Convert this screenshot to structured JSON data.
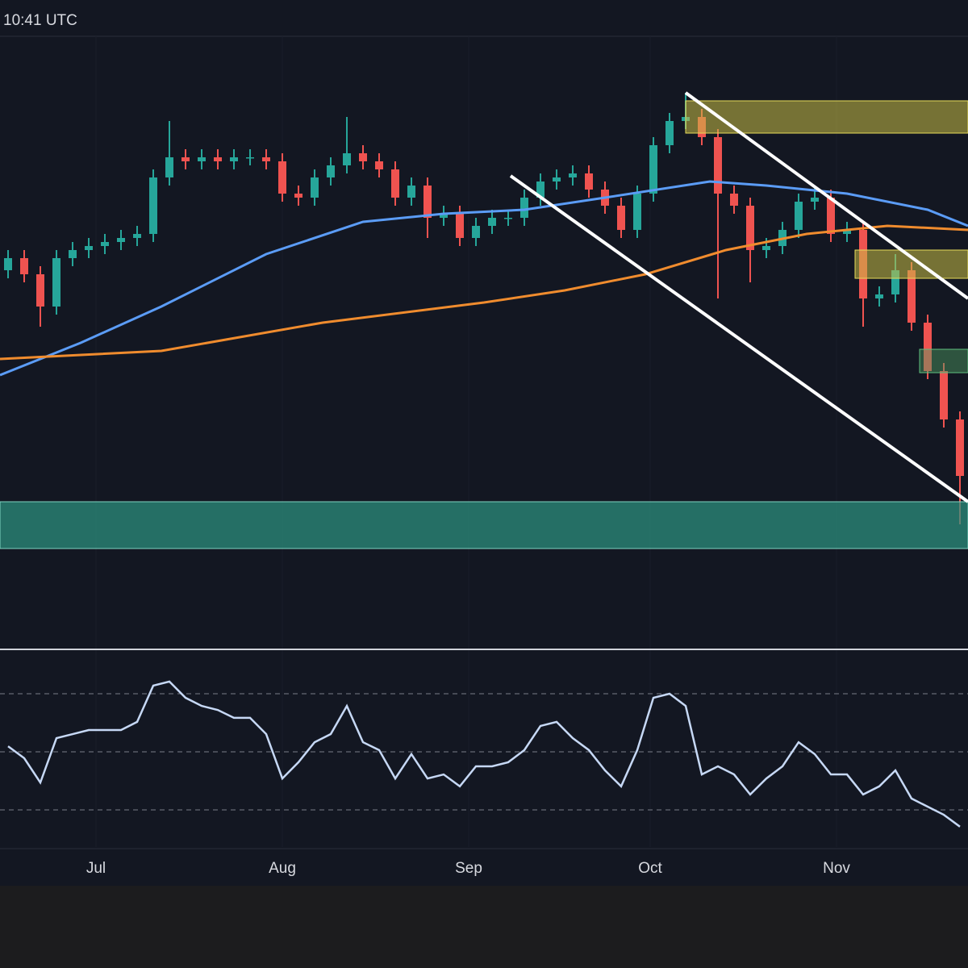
{
  "header": {
    "time": "10:41 UTC"
  },
  "chart_data": {
    "type": "candlestick",
    "xlim": [
      -0.5,
      59.5
    ],
    "xticks": [
      {
        "value": 5.45,
        "label": "Jul"
      },
      {
        "value": 17,
        "label": "Aug"
      },
      {
        "value": 28.55,
        "label": "Sep"
      },
      {
        "value": 39.8,
        "label": "Oct"
      },
      {
        "value": 51.35,
        "label": "Nov"
      }
    ],
    "ylim": [
      0,
      760
    ],
    "up_color": "#26a69a",
    "down_color": "#ef5350",
    "open": [
      470,
      485,
      465,
      425,
      485,
      495,
      500,
      505,
      510,
      515,
      585,
      610,
      605,
      610,
      605,
      610,
      610,
      605,
      565,
      560,
      585,
      600,
      615,
      605,
      595,
      560,
      575,
      535,
      540,
      510,
      525,
      535,
      535,
      560,
      580,
      585,
      590,
      570,
      550,
      520,
      565,
      625,
      655,
      660,
      635,
      565,
      550,
      495,
      500,
      520,
      555,
      560,
      515,
      520,
      435,
      440,
      470,
      405,
      345,
      285
    ],
    "high": [
      495,
      495,
      475,
      495,
      505,
      510,
      515,
      520,
      525,
      595,
      655,
      620,
      620,
      620,
      620,
      620,
      620,
      615,
      575,
      595,
      610,
      660,
      625,
      615,
      605,
      585,
      585,
      550,
      550,
      535,
      545,
      545,
      570,
      590,
      595,
      600,
      600,
      580,
      560,
      575,
      635,
      665,
      690,
      670,
      645,
      575,
      560,
      510,
      530,
      565,
      575,
      570,
      530,
      530,
      450,
      490,
      480,
      415,
      355,
      295
    ],
    "low": [
      460,
      455,
      400,
      415,
      475,
      485,
      490,
      495,
      500,
      505,
      575,
      595,
      595,
      595,
      595,
      600,
      595,
      555,
      550,
      550,
      575,
      590,
      595,
      585,
      550,
      550,
      510,
      525,
      500,
      500,
      515,
      525,
      525,
      550,
      570,
      575,
      560,
      540,
      510,
      510,
      555,
      615,
      645,
      625,
      435,
      540,
      455,
      485,
      490,
      510,
      545,
      505,
      505,
      400,
      425,
      430,
      395,
      335,
      275,
      155
    ],
    "close": [
      485,
      465,
      425,
      485,
      495,
      500,
      505,
      510,
      515,
      585,
      610,
      605,
      610,
      605,
      610,
      610,
      605,
      565,
      560,
      585,
      600,
      615,
      605,
      595,
      560,
      575,
      535,
      540,
      510,
      525,
      535,
      535,
      560,
      580,
      585,
      590,
      570,
      550,
      520,
      565,
      625,
      655,
      660,
      635,
      565,
      550,
      495,
      500,
      520,
      555,
      560,
      515,
      520,
      435,
      440,
      470,
      405,
      345,
      285,
      215
    ],
    "lines": [
      {
        "color": "#5b9cf6",
        "x": [
          -0.5,
          4.5,
          9.5,
          16,
          22,
          27,
          32,
          37,
          43.5,
          47,
          52,
          57,
          59.5
        ],
        "values": [
          340,
          380,
          425,
          490,
          530,
          540,
          545,
          560,
          580,
          575,
          565,
          545,
          525
        ]
      },
      {
        "color": "#f08c2e",
        "x": [
          -0.5,
          9.5,
          19.5,
          29.5,
          34.5,
          39.5,
          44.5,
          49.5,
          54.5,
          59.5
        ],
        "values": [
          360,
          370,
          405,
          430,
          445,
          465,
          495,
          515,
          525,
          520
        ]
      }
    ],
    "rsi": {
      "color": "#c6d8f5",
      "ylim": [
        17.2,
        83.9
      ],
      "guide_lines": [
        30,
        50,
        70
      ],
      "values": [
        51.9,
        47.8,
        39.4,
        54.7,
        56.1,
        57.5,
        57.5,
        57.5,
        60.3,
        72.8,
        74.2,
        68.6,
        65.8,
        64.4,
        61.7,
        61.7,
        56.1,
        40.8,
        46.4,
        53.3,
        56.1,
        65.8,
        53.3,
        50.6,
        40.8,
        49.2,
        40.8,
        42.2,
        38.1,
        45,
        45,
        46.4,
        50.6,
        58.9,
        60.3,
        54.7,
        50.6,
        43.6,
        38.1,
        50.6,
        68.6,
        70,
        65.8,
        42.2,
        45,
        42.2,
        35.3,
        40.8,
        45,
        53.3,
        49.2,
        42.2,
        42.2,
        35.3,
        38.1,
        43.6,
        33.9,
        31.1,
        28.3,
        24.2
      ]
    }
  }
}
